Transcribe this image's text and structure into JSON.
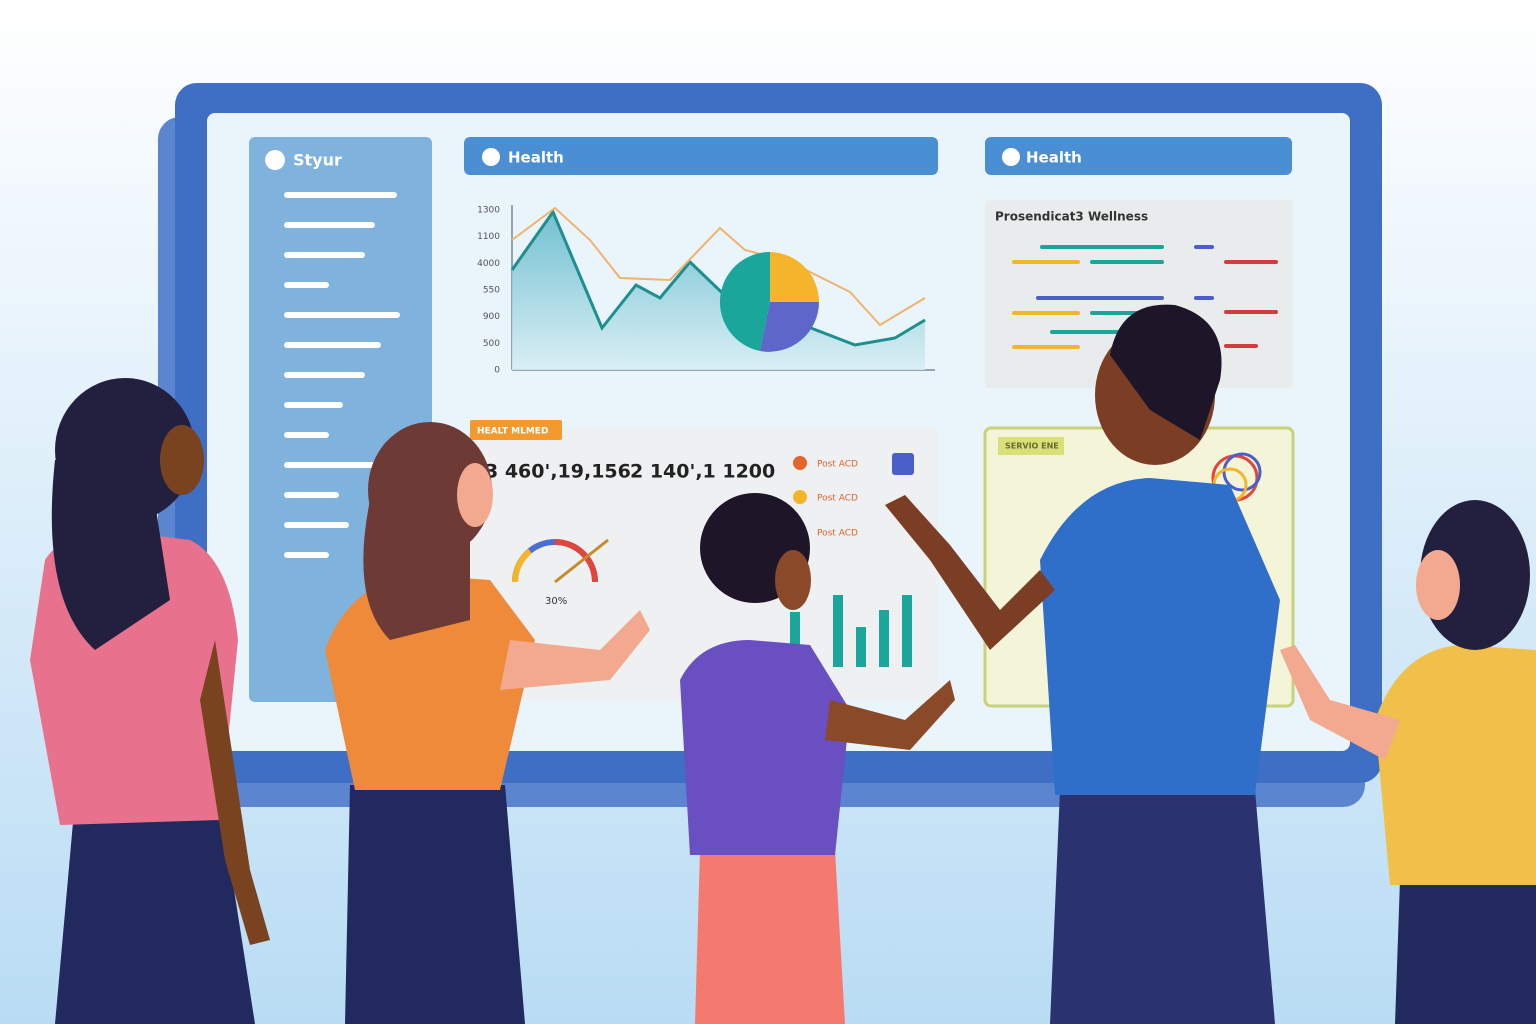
{
  "sidebar": {
    "title": "Styur"
  },
  "chart_panel": {
    "header": "Health",
    "axis_labels": [
      "1300",
      "1100",
      "4000",
      "550",
      "900",
      "500",
      "0"
    ]
  },
  "wellness_panel": {
    "header": "Health",
    "title": "Prosendicat3 Wellness"
  },
  "metrics_panel": {
    "badge": "HEALT MLMED",
    "metric_1": "3 460',19,156",
    "metric_2": "2 140',1 1200",
    "gauge_label": "30%",
    "legend": [
      "Post ACD",
      "Post ACD",
      "Post ACD"
    ]
  },
  "notes_panel": {
    "badge": "SERVIO ENE"
  }
}
